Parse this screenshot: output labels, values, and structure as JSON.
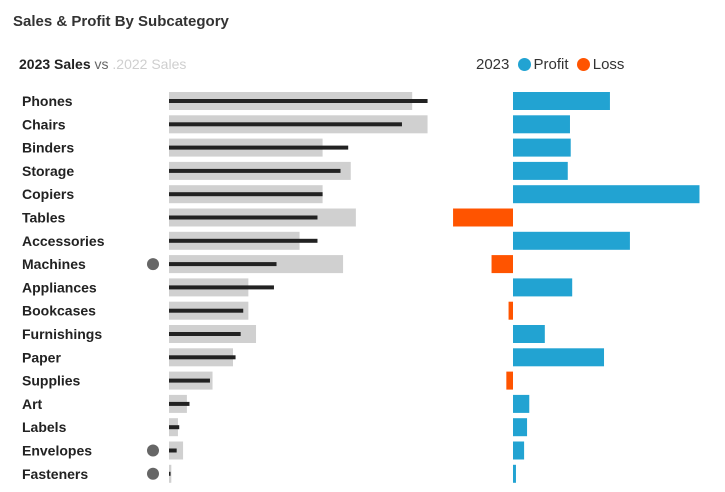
{
  "title": "Sales & Profit By Subcategory",
  "sales_legend": {
    "current": "2023 Sales",
    "vs": "vs",
    "previous": ".2022 Sales"
  },
  "profit_legend": {
    "year": "2023",
    "profit": "Profit",
    "loss": "Loss"
  },
  "colors": {
    "sales_current": "#222222",
    "sales_previous": "#d0d0d0",
    "profit": "#22a3d2",
    "loss": "#ff5400",
    "flag_marker": "#666666"
  },
  "chart_data": [
    {
      "type": "bar",
      "variant": "bullet",
      "title": "2023 Sales vs .2022 Sales",
      "categories": [
        "Phones",
        "Chairs",
        "Binders",
        "Storage",
        "Copiers",
        "Tables",
        "Accessories",
        "Machines",
        "Appliances",
        "Bookcases",
        "Furnishings",
        "Paper",
        "Supplies",
        "Art",
        "Labels",
        "Envelopes",
        "Fasteners"
      ],
      "series": [
        {
          "name": "2023 Sales",
          "values": [
            101,
            91,
            70,
            67,
            60,
            58,
            58,
            42,
            41,
            29,
            28,
            26,
            16,
            8,
            4,
            3,
            0.6
          ]
        },
        {
          "name": "2022 Sales",
          "values": [
            95,
            101,
            60,
            71,
            60,
            73,
            51,
            68,
            31,
            31,
            34,
            25,
            17,
            7,
            3.5,
            5.5,
            0.9
          ]
        }
      ],
      "markers": [
        "Machines",
        "Envelopes",
        "Fasteners"
      ]
    },
    {
      "type": "bar",
      "title": "2023 Profit Loss",
      "categories": [
        "Phones",
        "Chairs",
        "Binders",
        "Storage",
        "Copiers",
        "Tables",
        "Accessories",
        "Machines",
        "Appliances",
        "Bookcases",
        "Furnishings",
        "Paper",
        "Supplies",
        "Art",
        "Labels",
        "Envelopes",
        "Fasteners"
      ],
      "values": [
        13.1,
        7.7,
        7.8,
        7.4,
        25.2,
        -8.1,
        15.8,
        -2.9,
        8.0,
        -0.6,
        4.3,
        12.3,
        -0.9,
        2.2,
        1.9,
        1.5,
        0.4
      ],
      "legend": [
        "Profit",
        "Loss"
      ]
    }
  ]
}
